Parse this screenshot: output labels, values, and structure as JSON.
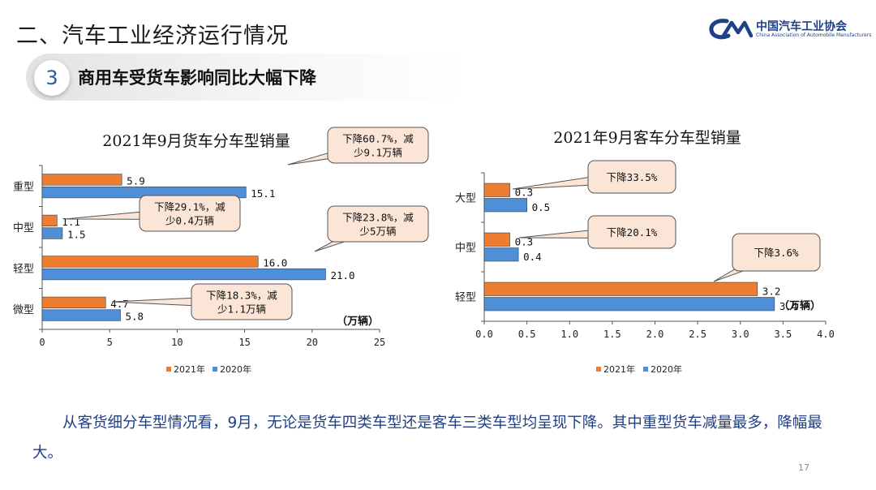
{
  "header": {
    "section_title": "二、汽车工业经济运行情况",
    "logo_cn": "中国汽车工业协会",
    "logo_en": "China Association of Automobile Manufacturers"
  },
  "subtitle": {
    "number": "3",
    "text": "商用车受货车影响同比大幅下降"
  },
  "chart_data": [
    {
      "type": "bar",
      "orientation": "horizontal",
      "title": "2021年9月货车分车型销量",
      "categories": [
        "重型",
        "中型",
        "轻型",
        "微型"
      ],
      "series": [
        {
          "name": "2021年",
          "values": [
            5.9,
            1.1,
            16.0,
            4.7
          ],
          "labels": [
            "5.9",
            "1.1",
            "16.0",
            "4.7"
          ],
          "color": "#ed7d31"
        },
        {
          "name": "2020年",
          "values": [
            15.1,
            1.5,
            21.0,
            5.8
          ],
          "labels": [
            "15.1",
            "1.5",
            "21.0",
            "5.8"
          ],
          "color": "#4f8fd8"
        }
      ],
      "xlim": [
        0,
        25
      ],
      "xticks": [
        "0",
        "5",
        "10",
        "15",
        "20",
        "25"
      ],
      "unit_label": "（万辆）",
      "legend_position": "bottom",
      "annotations": [
        {
          "category": "重型",
          "lines": [
            "下降60.7%，减",
            "少9.1万辆"
          ]
        },
        {
          "category": "中型",
          "lines": [
            "下降29.1%，减",
            "少0.4万辆"
          ]
        },
        {
          "category": "轻型",
          "lines": [
            "下降23.8%，减",
            "少5万辆"
          ]
        },
        {
          "category": "微型",
          "lines": [
            "下降18.3%，减",
            "少1.1万辆"
          ]
        }
      ]
    },
    {
      "type": "bar",
      "orientation": "horizontal",
      "title": "2021年9月客车分车型销量",
      "categories": [
        "大型",
        "中型",
        "轻型"
      ],
      "series": [
        {
          "name": "2021年",
          "values": [
            0.3,
            0.3,
            3.2
          ],
          "labels": [
            "0.3",
            "0.3",
            "3.2"
          ],
          "color": "#ed7d31"
        },
        {
          "name": "2020年",
          "values": [
            0.5,
            0.4,
            3.4
          ],
          "labels": [
            "0.5",
            "0.4",
            "3.4"
          ],
          "color": "#4f8fd8"
        }
      ],
      "xlim": [
        0,
        4
      ],
      "xticks": [
        "0.0",
        "0.5",
        "1.0",
        "1.5",
        "2.0",
        "2.5",
        "3.0",
        "3.5",
        "4.0"
      ],
      "unit_label": "（万辆）",
      "legend_position": "bottom",
      "annotations": [
        {
          "category": "大型",
          "lines": [
            "下降33.5%"
          ]
        },
        {
          "category": "中型",
          "lines": [
            "下降20.1%"
          ]
        },
        {
          "category": "轻型",
          "lines": [
            "下降3.6%"
          ]
        }
      ]
    }
  ],
  "body_text": "从客货细分车型情况看，9月，无论是货车四类车型还是客车三类车型均呈现下降。其中重型货车减量最多，降幅最大。",
  "page_number": "17"
}
